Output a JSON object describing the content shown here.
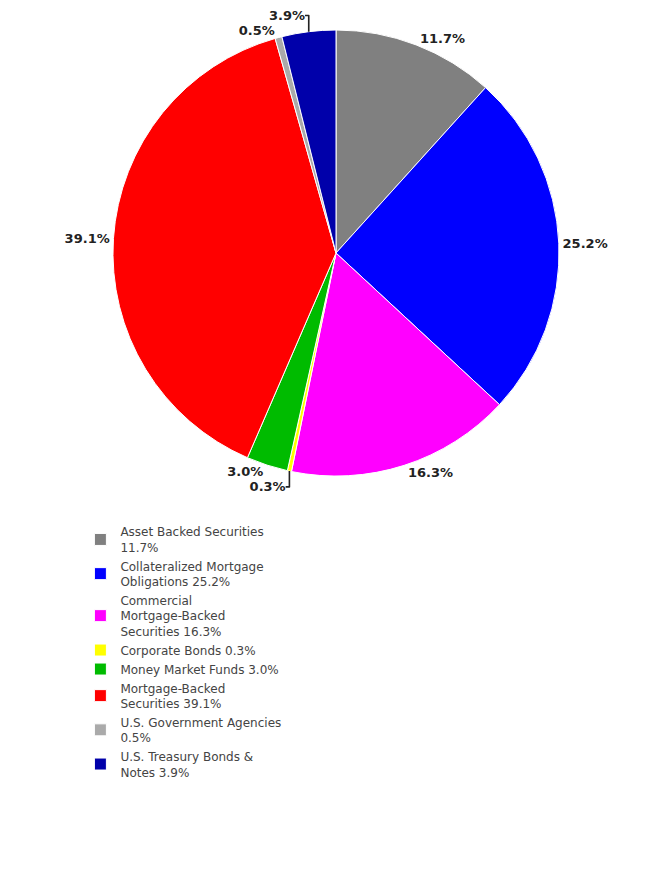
{
  "chart_data": {
    "type": "pie",
    "categories": [
      "Asset Backed Securities\n11.7%",
      "Collateralized Mortgage\nObligations 25.2%",
      "Commercial\nMortgage-Backed\nSecurities 16.3%",
      "Corporate Bonds 0.3%",
      "Money Market Funds 3.0%",
      "Mortgage-Backed\nSecurities 39.1%",
      "U.S. Government Agencies\n0.5%",
      "U.S. Treasury Bonds &\nNotes 3.9%"
    ],
    "values": [
      11.7,
      25.2,
      16.3,
      0.3,
      3.0,
      39.1,
      0.5,
      3.9
    ],
    "value_labels": [
      "11.7%",
      "25.2%",
      "16.3%",
      "0.3%",
      "3.0%",
      "39.1%",
      "0.5%",
      "3.9%"
    ],
    "colors": [
      "#808080",
      "#0000ff",
      "#ff00ff",
      "#ffff00",
      "#00bb00",
      "#ff0000",
      "#aaaaaa",
      "#0000aa"
    ],
    "data_labels": true,
    "legend": "bottom"
  }
}
